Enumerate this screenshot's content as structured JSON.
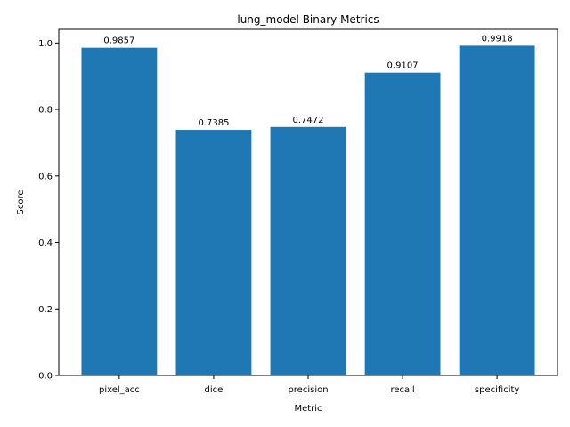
{
  "chart_data": {
    "type": "bar",
    "title": "lung_model Binary Metrics",
    "xlabel": "Metric",
    "ylabel": "Score",
    "categories": [
      "pixel_acc",
      "dice",
      "precision",
      "recall",
      "specificity"
    ],
    "values": [
      0.9857,
      0.7385,
      0.7472,
      0.9107,
      0.9918
    ],
    "data_labels": [
      "0.9857",
      "0.7385",
      "0.7472",
      "0.9107",
      "0.9918"
    ],
    "ylim": [
      0,
      1.041
    ],
    "yticks": [
      0.0,
      0.2,
      0.4,
      0.6,
      0.8,
      1.0
    ],
    "ytick_labels": [
      "0.0",
      "0.2",
      "0.4",
      "0.6",
      "0.8",
      "1.0"
    ],
    "bar_color": "#1f77b4",
    "grid": false,
    "legend": "none"
  }
}
